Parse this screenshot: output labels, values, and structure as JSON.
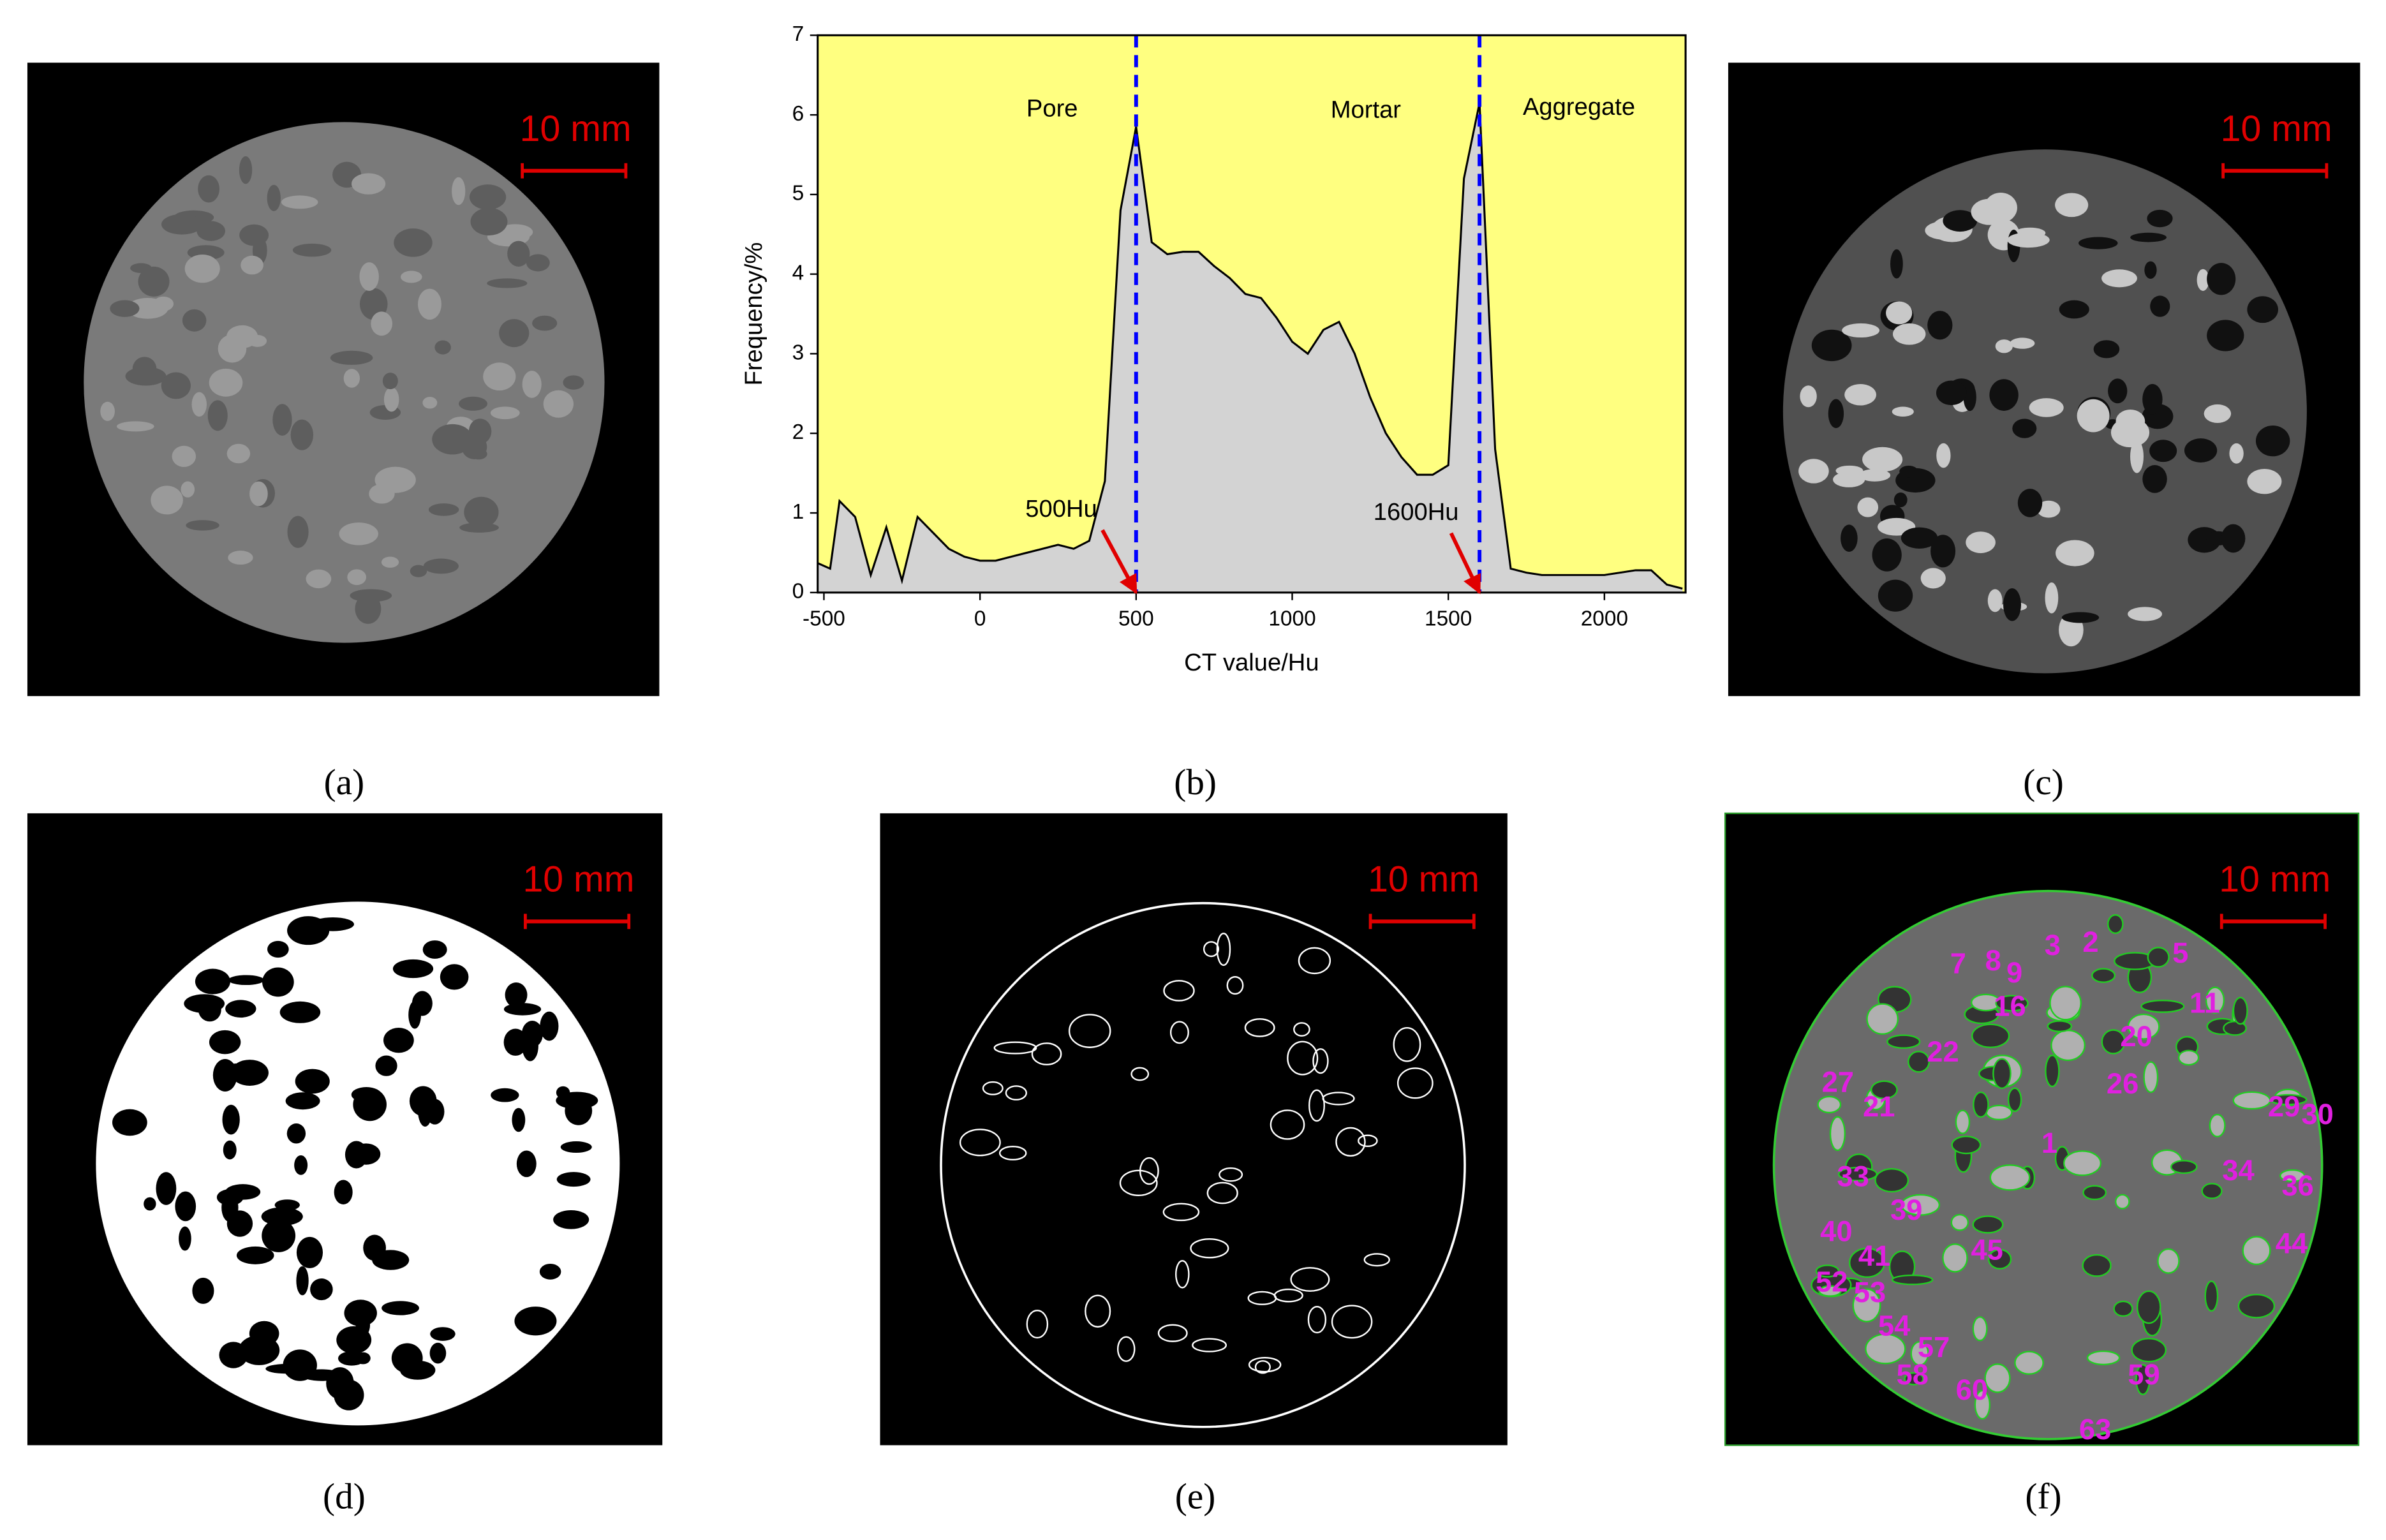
{
  "panels": [
    {
      "label": "(a)",
      "scale_bar": "10 mm"
    },
    {
      "label": "(b)"
    },
    {
      "label": "(c)",
      "scale_bar": "10 mm"
    },
    {
      "label": "(d)",
      "scale_bar": "10 mm"
    },
    {
      "label": "(e)",
      "scale_bar": "10 mm"
    },
    {
      "label": "(f)",
      "scale_bar": "10 mm"
    }
  ],
  "grain_labels": [
    "3",
    "2",
    "5",
    "7",
    "8",
    "9",
    "16",
    "11",
    "20",
    "22",
    "26",
    "27",
    "21",
    "29",
    "30",
    "1",
    "33",
    "34",
    "36",
    "39",
    "40",
    "41",
    "45",
    "44",
    "52",
    "53",
    "54",
    "57",
    "58",
    "60",
    "59",
    "63"
  ],
  "chart_data": {
    "type": "area",
    "x_label": "CT value/Hu",
    "y_label": "Frequency/%",
    "x": [
      -520,
      -480,
      -450,
      -400,
      -350,
      -300,
      -250,
      -200,
      -150,
      -100,
      -50,
      0,
      50,
      100,
      150,
      200,
      250,
      300,
      350,
      400,
      450,
      500,
      550,
      600,
      650,
      700,
      750,
      800,
      850,
      900,
      950,
      1000,
      1050,
      1100,
      1150,
      1200,
      1250,
      1300,
      1350,
      1400,
      1450,
      1500,
      1550,
      1600,
      1650,
      1700,
      1750,
      1800,
      1850,
      1900,
      1950,
      2000,
      2050,
      2100,
      2150,
      2200,
      2250
    ],
    "values": [
      0.37,
      0.3,
      1.15,
      0.95,
      0.22,
      0.82,
      0.15,
      0.95,
      0.75,
      0.55,
      0.45,
      0.4,
      0.4,
      0.45,
      0.5,
      0.55,
      0.6,
      0.55,
      0.65,
      1.4,
      4.8,
      5.85,
      4.4,
      4.25,
      4.28,
      4.28,
      4.1,
      3.95,
      3.75,
      3.7,
      3.45,
      3.15,
      3.0,
      3.3,
      3.4,
      3.0,
      2.45,
      2.0,
      1.7,
      1.48,
      1.48,
      1.6,
      5.2,
      6.15,
      1.8,
      0.3,
      0.25,
      0.22,
      0.22,
      0.22,
      0.22,
      0.22,
      0.25,
      0.28,
      0.28,
      0.1,
      0.05
    ],
    "color": "#d3d3d3",
    "background": "#ffff80",
    "xlim": [
      -520,
      2260
    ],
    "ylim": [
      0,
      7
    ],
    "xticks": [
      -500,
      0,
      500,
      1000,
      1500,
      2000
    ],
    "yticks": [
      0,
      1,
      2,
      3,
      4,
      5,
      6,
      7
    ],
    "reference_lines": [
      {
        "value": 500,
        "color": "#0000ff"
      },
      {
        "value": 1600,
        "color": "#0000ff"
      }
    ],
    "annotations": [
      "Pore",
      "Mortar",
      "Aggregate",
      "500Hu",
      "1600Hu"
    ]
  }
}
